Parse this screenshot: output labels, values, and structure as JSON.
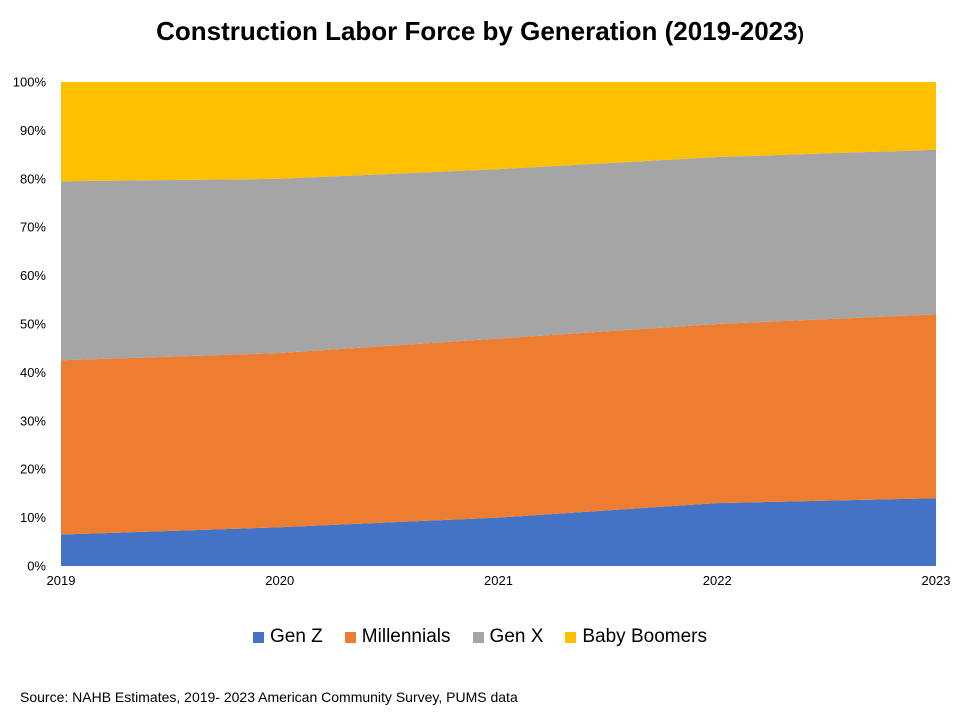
{
  "chart_data": {
    "type": "area",
    "stacked": "percent",
    "title_main": "Construction Labor Force by Generation (2019-2023",
    "title_paren": ")",
    "x": [
      "2019",
      "2020",
      "2021",
      "2022",
      "2023"
    ],
    "y_ticks": [
      "0%",
      "10%",
      "20%",
      "30%",
      "40%",
      "50%",
      "60%",
      "70%",
      "80%",
      "90%",
      "100%"
    ],
    "ylim": [
      0,
      100
    ],
    "legend_position": "bottom",
    "grid": false,
    "series": [
      {
        "name": "Gen Z",
        "color": "#4472C4",
        "values": [
          6.5,
          8.0,
          10.0,
          13.0,
          14.0
        ]
      },
      {
        "name": "Millennials",
        "color": "#ED7D31",
        "values": [
          36.0,
          36.0,
          37.0,
          37.0,
          38.0
        ]
      },
      {
        "name": "Gen X",
        "color": "#A5A5A5",
        "values": [
          37.0,
          36.0,
          35.0,
          34.5,
          34.0
        ]
      },
      {
        "name": "Baby Boomers",
        "color": "#FFC000",
        "values": [
          20.5,
          20.0,
          18.0,
          15.5,
          14.0
        ]
      }
    ]
  },
  "source": "Source: NAHB Estimates, 2019- 2023 American Community Survey, PUMS data"
}
